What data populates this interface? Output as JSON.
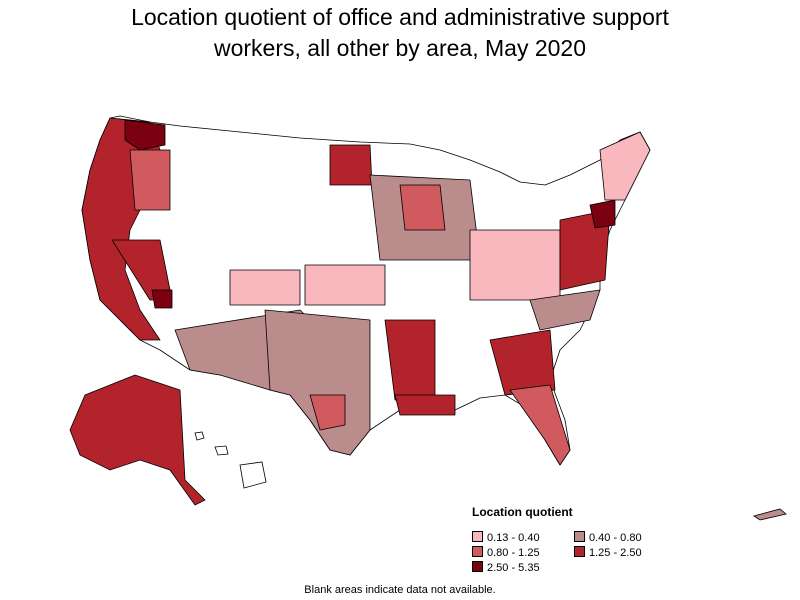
{
  "title_line1": "Location quotient of office and administrative support",
  "title_line2": "workers, all other by area, May 2020",
  "legend": {
    "title": "Location quotient",
    "items": [
      {
        "label": "0.13 - 0.40",
        "color": "#f9b8bd"
      },
      {
        "label": "0.40 - 0.80",
        "color": "#bb8c8c"
      },
      {
        "label": "0.80 - 1.25",
        "color": "#d15a5f"
      },
      {
        "label": "1.25 - 2.50",
        "color": "#b3232b"
      },
      {
        "label": "2.50 - 5.35",
        "color": "#7b0010"
      }
    ]
  },
  "footnote": "Blank areas indicate data not available.",
  "colors": {
    "q1": "#f9b8bd",
    "q2": "#bb8c8c",
    "q3": "#d15a5f",
    "q4": "#b3232b",
    "q5": "#7b0010",
    "blank": "#ffffff",
    "border": "#000000"
  }
}
